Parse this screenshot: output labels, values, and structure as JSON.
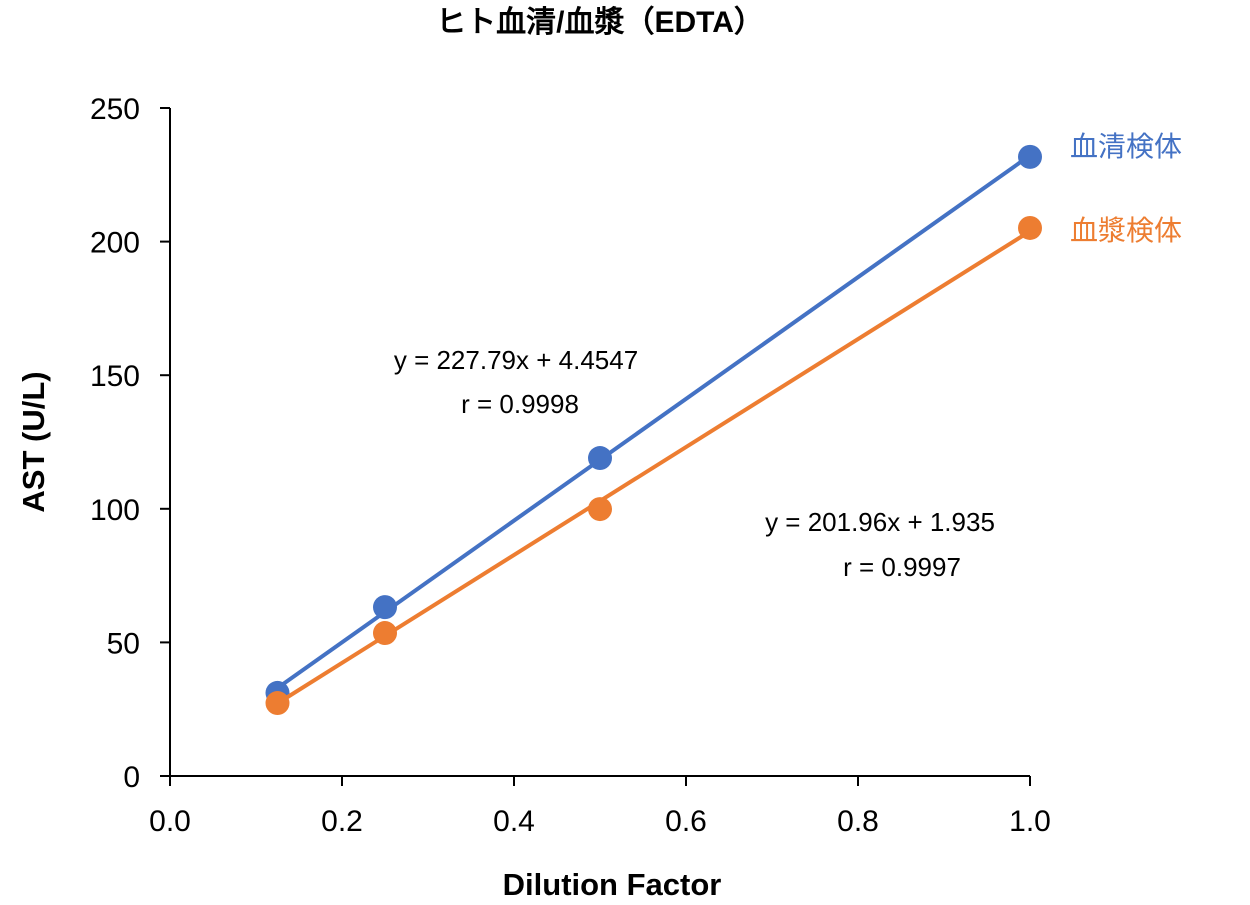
{
  "chart_data": {
    "type": "scatter",
    "title": "ヒト血清/血漿（EDTA）",
    "xlabel": "Dilution Factor",
    "ylabel": "AST (U/L)",
    "xlim": [
      0,
      1.0
    ],
    "ylim": [
      0,
      250
    ],
    "xticks": [
      "0.0",
      "0.2",
      "0.4",
      "0.6",
      "0.8",
      "1.0"
    ],
    "yticks": [
      "0",
      "50",
      "100",
      "150",
      "200",
      "250"
    ],
    "grid": false,
    "legend": "right",
    "series": [
      {
        "name": "血清検体",
        "color": "#4472C4",
        "x": [
          0.125,
          0.25,
          0.5,
          1.0
        ],
        "y": [
          31.1,
          63.2,
          119.0,
          231.7
        ],
        "trendline": {
          "slope": 227.79,
          "intercept": 4.4547
        },
        "equation": "y = 227.79x + 4.4547",
        "r": "r = 0.9998"
      },
      {
        "name": "血漿検体",
        "color": "#ED7D31",
        "x": [
          0.125,
          0.25,
          0.5,
          1.0
        ],
        "y": [
          27.3,
          53.5,
          99.9,
          205.1
        ],
        "trendline": {
          "slope": 201.96,
          "intercept": 1.935
        },
        "equation": "y = 201.96x + 1.935",
        "r": "r = 0.9997"
      }
    ]
  }
}
